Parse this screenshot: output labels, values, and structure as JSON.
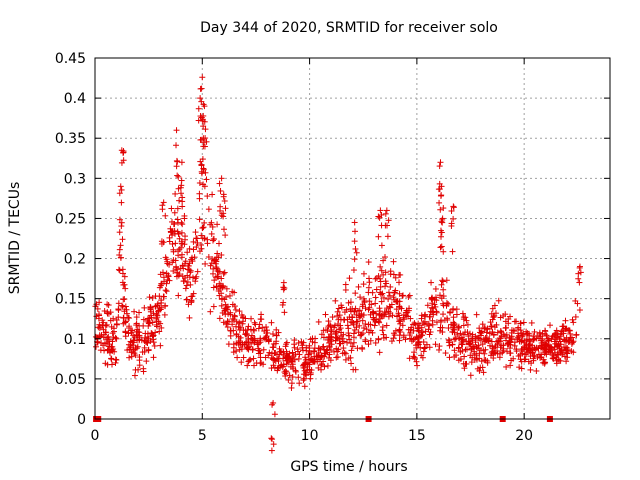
{
  "chart_data": {
    "type": "scatter",
    "title": "Day 344 of 2020, SRMTID for receiver solo",
    "xlabel": "GPS time / hours",
    "ylabel": "SRMTID / TECUs",
    "xlim": [
      0,
      24
    ],
    "ylim": [
      0,
      0.45
    ],
    "xticks": [
      0,
      5,
      10,
      15,
      20
    ],
    "yticks": [
      0,
      0.05,
      0.1,
      0.15,
      0.2,
      0.25,
      0.3,
      0.35,
      0.4,
      0.45
    ],
    "xtick_labels": [
      "0",
      "5",
      "10",
      "15",
      "20"
    ],
    "ytick_labels": [
      "0",
      "0.05",
      "0.1",
      "0.15",
      "0.2",
      "0.25",
      "0.3",
      "0.35",
      "0.4",
      "0.45"
    ],
    "grid": true,
    "marker": "+",
    "color": "#e00000",
    "zero_markers_x": [
      0.05,
      0.15,
      12.75,
      19.0,
      21.2
    ],
    "profile": [
      {
        "x": 0.0,
        "center": 0.12,
        "spread": 0.05
      },
      {
        "x": 0.5,
        "center": 0.11,
        "spread": 0.06
      },
      {
        "x": 1.0,
        "center": 0.09,
        "spread": 0.06
      },
      {
        "x": 1.2,
        "center": 0.2,
        "spread": 0.12
      },
      {
        "x": 1.6,
        "center": 0.09,
        "spread": 0.05
      },
      {
        "x": 2.2,
        "center": 0.1,
        "spread": 0.06
      },
      {
        "x": 3.0,
        "center": 0.13,
        "spread": 0.06
      },
      {
        "x": 3.5,
        "center": 0.2,
        "spread": 0.08
      },
      {
        "x": 4.0,
        "center": 0.23,
        "spread": 0.1
      },
      {
        "x": 4.5,
        "center": 0.16,
        "spread": 0.08
      },
      {
        "x": 5.0,
        "center": 0.28,
        "spread": 0.13
      },
      {
        "x": 5.5,
        "center": 0.2,
        "spread": 0.1
      },
      {
        "x": 6.0,
        "center": 0.14,
        "spread": 0.06
      },
      {
        "x": 7.0,
        "center": 0.1,
        "spread": 0.05
      },
      {
        "x": 8.0,
        "center": 0.09,
        "spread": 0.05
      },
      {
        "x": 9.0,
        "center": 0.07,
        "spread": 0.04
      },
      {
        "x": 10.0,
        "center": 0.07,
        "spread": 0.04
      },
      {
        "x": 11.0,
        "center": 0.1,
        "spread": 0.05
      },
      {
        "x": 12.0,
        "center": 0.12,
        "spread": 0.07
      },
      {
        "x": 13.0,
        "center": 0.14,
        "spread": 0.08
      },
      {
        "x": 14.0,
        "center": 0.14,
        "spread": 0.07
      },
      {
        "x": 15.0,
        "center": 0.1,
        "spread": 0.05
      },
      {
        "x": 16.0,
        "center": 0.14,
        "spread": 0.07
      },
      {
        "x": 17.0,
        "center": 0.1,
        "spread": 0.05
      },
      {
        "x": 18.0,
        "center": 0.09,
        "spread": 0.05
      },
      {
        "x": 19.0,
        "center": 0.11,
        "spread": 0.05
      },
      {
        "x": 20.0,
        "center": 0.09,
        "spread": 0.04
      },
      {
        "x": 21.0,
        "center": 0.09,
        "spread": 0.04
      },
      {
        "x": 22.0,
        "center": 0.09,
        "spread": 0.04
      },
      {
        "x": 22.5,
        "center": 0.13,
        "spread": 0.06
      }
    ],
    "peaks": [
      {
        "x": 1.25,
        "y": 0.335
      },
      {
        "x": 1.2,
        "y": 0.29
      },
      {
        "x": 3.2,
        "y": 0.27
      },
      {
        "x": 3.8,
        "y": 0.36
      },
      {
        "x": 4.05,
        "y": 0.32
      },
      {
        "x": 4.9,
        "y": 0.4
      },
      {
        "x": 5.0,
        "y": 0.426
      },
      {
        "x": 5.1,
        "y": 0.39
      },
      {
        "x": 5.05,
        "y": 0.35
      },
      {
        "x": 5.9,
        "y": 0.3
      },
      {
        "x": 6.0,
        "y": 0.28
      },
      {
        "x": 12.1,
        "y": 0.245
      },
      {
        "x": 13.3,
        "y": 0.26
      },
      {
        "x": 13.6,
        "y": 0.26
      },
      {
        "x": 16.1,
        "y": 0.32
      },
      {
        "x": 16.15,
        "y": 0.29
      },
      {
        "x": 16.2,
        "y": 0.25
      },
      {
        "x": 16.7,
        "y": 0.265
      },
      {
        "x": 22.6,
        "y": 0.19
      },
      {
        "x": 8.8,
        "y": 0.17
      },
      {
        "x": 8.3,
        "y": 0.02
      }
    ]
  }
}
